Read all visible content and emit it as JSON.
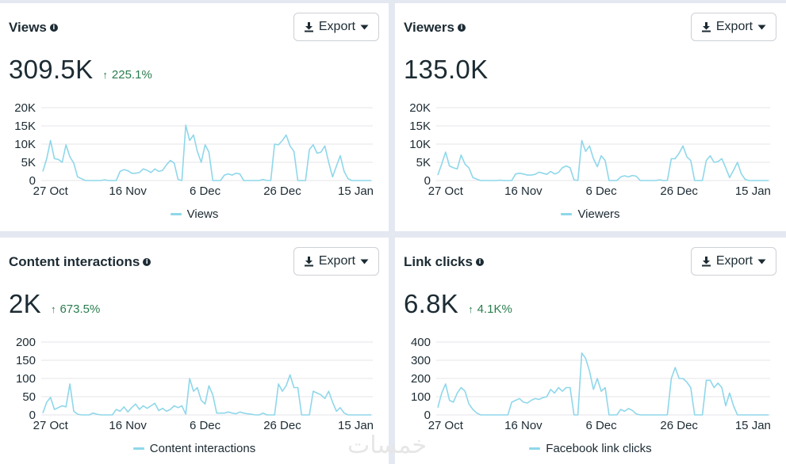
{
  "cards": [
    {
      "title": "Views",
      "value": "309.5K",
      "change": "225.1%",
      "export_label": "Export",
      "legend": "Views"
    },
    {
      "title": "Viewers",
      "value": "135.0K",
      "change": "",
      "export_label": "Export",
      "legend": "Viewers"
    },
    {
      "title": "Content interactions",
      "value": "2K",
      "change": "673.5%",
      "export_label": "Export",
      "legend": "Content interactions"
    },
    {
      "title": "Link clicks",
      "value": "6.8K",
      "change": "4.1K%",
      "export_label": "Export",
      "legend": "Facebook link clicks"
    }
  ],
  "watermark": "خمسات",
  "colors": {
    "line": "#8fd7ea",
    "trend_up": "#2a7d4f",
    "grid": "#e4e6eb",
    "text": "#1c2b33"
  },
  "chart_data": [
    {
      "type": "line",
      "x_tick_labels": [
        "27 Oct",
        "16 Nov",
        "6 Dec",
        "26 Dec",
        "15 Jan"
      ],
      "x_tick_index": [
        2,
        22,
        42,
        62,
        81
      ],
      "y_tick_labels": [
        "0",
        "5K",
        "10K",
        "15K",
        "20K"
      ],
      "ylim": [
        0,
        20000
      ],
      "series": [
        {
          "name": "Views",
          "values": [
            2500,
            6000,
            11000,
            6000,
            5800,
            5000,
            9800,
            6500,
            4800,
            1000,
            500,
            0,
            0,
            0,
            0,
            0,
            200,
            0,
            0,
            0,
            2500,
            3000,
            2700,
            2000,
            2000,
            2200,
            3200,
            2800,
            2200,
            3200,
            2500,
            2800,
            4300,
            5500,
            4800,
            300,
            0,
            15200,
            11000,
            12500,
            8000,
            5000,
            9800,
            7800,
            0,
            0,
            0,
            1500,
            1800,
            1500,
            2000,
            1800,
            0,
            0,
            0,
            0,
            0,
            300,
            0,
            0,
            10000,
            9800,
            11000,
            12500,
            9500,
            8000,
            0,
            0,
            0,
            8500,
            9800,
            7500,
            7800,
            9500,
            5000,
            1000,
            4000,
            6800,
            2500,
            500,
            0,
            0,
            0,
            0,
            0,
            0
          ]
        }
      ]
    },
    {
      "type": "line",
      "x_tick_labels": [
        "27 Oct",
        "16 Nov",
        "6 Dec",
        "26 Dec",
        "15 Jan"
      ],
      "x_tick_index": [
        2,
        22,
        42,
        62,
        81
      ],
      "y_tick_labels": [
        "0",
        "5K",
        "10K",
        "15K",
        "20K"
      ],
      "ylim": [
        0,
        20000
      ],
      "series": [
        {
          "name": "Viewers",
          "values": [
            1500,
            4500,
            7800,
            4000,
            3500,
            3200,
            7000,
            4500,
            3500,
            800,
            400,
            0,
            0,
            0,
            0,
            0,
            100,
            0,
            0,
            0,
            1800,
            2000,
            1800,
            1500,
            1500,
            1700,
            2300,
            2000,
            1700,
            2500,
            1800,
            2200,
            3500,
            4000,
            3500,
            200,
            0,
            11000,
            8000,
            9500,
            6000,
            3800,
            6800,
            5500,
            0,
            0,
            0,
            1000,
            1300,
            1000,
            1400,
            1200,
            0,
            0,
            0,
            0,
            0,
            200,
            0,
            0,
            6000,
            6000,
            7500,
            9500,
            6500,
            5500,
            0,
            0,
            0,
            5500,
            6800,
            5000,
            5200,
            6000,
            3500,
            800,
            2800,
            5000,
            1800,
            300,
            0,
            0,
            0,
            0,
            0,
            0
          ]
        }
      ]
    },
    {
      "type": "line",
      "x_tick_labels": [
        "27 Oct",
        "16 Nov",
        "6 Dec",
        "26 Dec",
        "15 Jan"
      ],
      "x_tick_index": [
        2,
        22,
        42,
        62,
        81
      ],
      "y_tick_labels": [
        "0",
        "50",
        "100",
        "150",
        "200"
      ],
      "ylim": [
        0,
        200
      ],
      "series": [
        {
          "name": "Content interactions",
          "values": [
            5,
            35,
            48,
            15,
            20,
            25,
            22,
            85,
            10,
            2,
            0,
            0,
            0,
            5,
            2,
            0,
            0,
            0,
            0,
            15,
            10,
            22,
            8,
            20,
            30,
            15,
            25,
            18,
            25,
            32,
            12,
            18,
            10,
            15,
            25,
            20,
            25,
            2,
            100,
            65,
            75,
            40,
            30,
            80,
            55,
            5,
            5,
            5,
            8,
            5,
            3,
            8,
            5,
            3,
            2,
            0,
            0,
            5,
            0,
            0,
            0,
            85,
            65,
            80,
            110,
            75,
            75,
            0,
            0,
            0,
            65,
            60,
            55,
            45,
            65,
            35,
            10,
            20,
            5,
            0,
            0,
            0,
            0,
            0,
            0,
            0
          ]
        }
      ]
    },
    {
      "type": "line",
      "x_tick_labels": [
        "27 Oct",
        "16 Nov",
        "6 Dec",
        "26 Dec",
        "15 Jan"
      ],
      "x_tick_index": [
        2,
        22,
        42,
        62,
        81
      ],
      "y_tick_labels": [
        "0",
        "100",
        "200",
        "300",
        "400"
      ],
      "ylim": [
        0,
        400
      ],
      "series": [
        {
          "name": "Facebook link clicks",
          "values": [
            40,
            120,
            170,
            80,
            70,
            120,
            150,
            130,
            60,
            30,
            10,
            0,
            0,
            0,
            0,
            0,
            0,
            0,
            0,
            70,
            80,
            90,
            70,
            65,
            80,
            90,
            85,
            95,
            100,
            140,
            120,
            150,
            130,
            150,
            150,
            0,
            0,
            340,
            310,
            240,
            140,
            200,
            130,
            150,
            0,
            0,
            0,
            30,
            20,
            35,
            25,
            5,
            0,
            0,
            0,
            0,
            0,
            0,
            0,
            0,
            200,
            260,
            200,
            200,
            180,
            150,
            0,
            0,
            0,
            190,
            190,
            150,
            175,
            150,
            50,
            120,
            50,
            0,
            0,
            0,
            0,
            0,
            0,
            0,
            0,
            0
          ]
        }
      ]
    }
  ]
}
